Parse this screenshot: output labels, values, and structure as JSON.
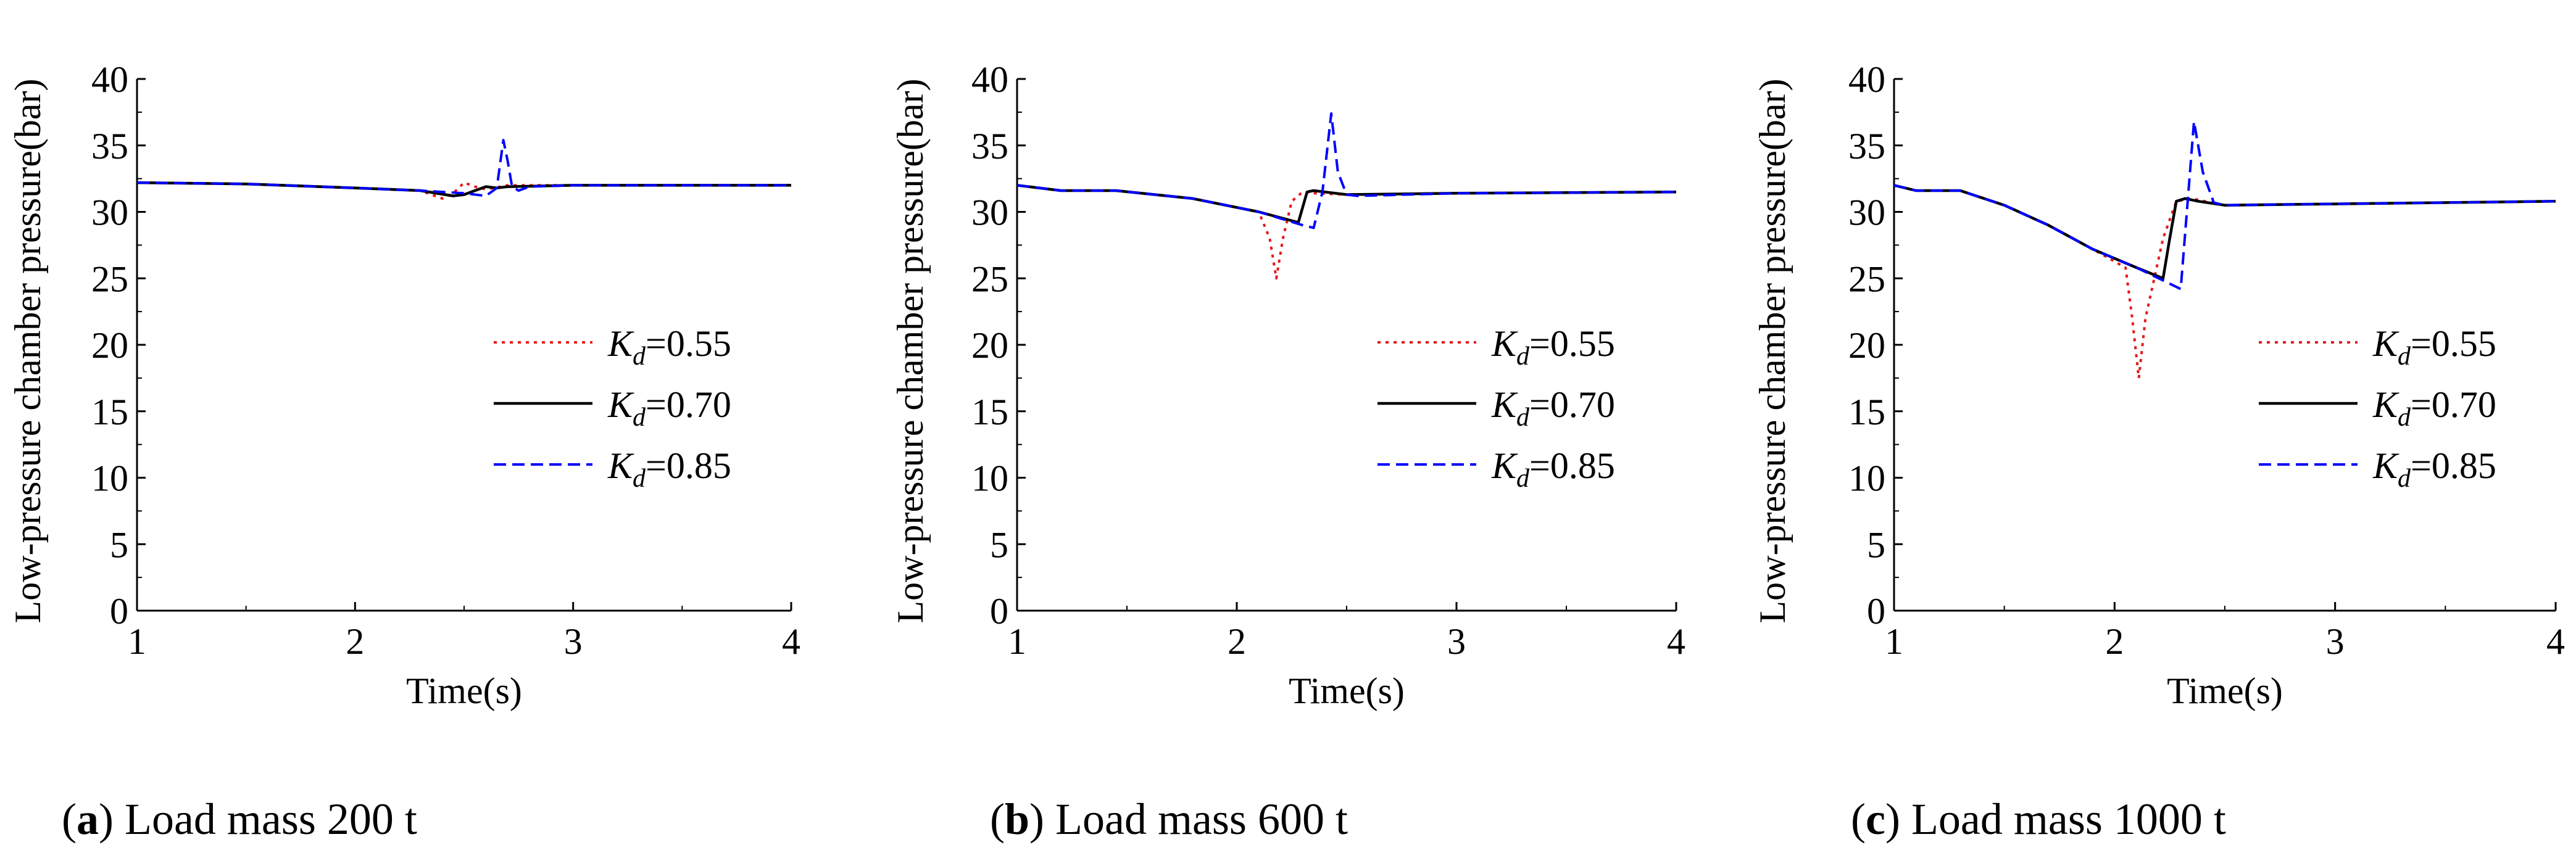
{
  "chart_data": [
    {
      "type": "line",
      "title": "",
      "xlabel": "Time(s)",
      "ylabel": "Low-pressure chamber pressure(bar)",
      "xlim": [
        1,
        4
      ],
      "ylim": [
        0,
        40
      ],
      "xticks": [
        1,
        2,
        3,
        4
      ],
      "yticks": [
        0,
        5,
        10,
        15,
        20,
        25,
        30,
        35,
        40
      ],
      "grid": false,
      "legend_position": "center-right",
      "caption": {
        "tag": "a",
        "text": " Load mass 200 t"
      },
      "series": [
        {
          "name": "Kd=0.55",
          "label_main": "K",
          "label_sub": "d",
          "label_value": "=0.55",
          "color": "#e41a1c",
          "style": "dotted",
          "x": [
            1.0,
            1.5,
            2.0,
            2.3,
            2.4,
            2.45,
            2.5,
            2.55,
            2.6,
            2.7,
            3.0,
            4.0
          ],
          "y": [
            32.2,
            32.1,
            31.8,
            31.6,
            31.0,
            31.4,
            32.2,
            31.9,
            31.7,
            32.0,
            32.0,
            32.0
          ]
        },
        {
          "name": "Kd=0.70",
          "label_main": "K",
          "label_sub": "d",
          "label_value": "=0.70",
          "color": "#000000",
          "style": "solid",
          "x": [
            1.0,
            1.5,
            2.0,
            2.3,
            2.45,
            2.5,
            2.55,
            2.6,
            2.65,
            2.7,
            3.0,
            4.0
          ],
          "y": [
            32.2,
            32.1,
            31.8,
            31.6,
            31.2,
            31.3,
            31.6,
            31.9,
            31.8,
            31.9,
            32.0,
            32.0
          ]
        },
        {
          "name": "Kd=0.85",
          "label_main": "K",
          "label_sub": "d",
          "label_value": "=0.85",
          "color": "#0000ff",
          "style": "dashed",
          "x": [
            1.0,
            1.5,
            2.0,
            2.3,
            2.5,
            2.6,
            2.65,
            2.68,
            2.7,
            2.72,
            2.75,
            2.8,
            3.0,
            4.0
          ],
          "y": [
            32.2,
            32.1,
            31.8,
            31.6,
            31.4,
            31.2,
            31.8,
            35.4,
            33.8,
            31.9,
            31.6,
            31.9,
            32.0,
            32.0
          ]
        }
      ]
    },
    {
      "type": "line",
      "title": "",
      "xlabel": "Time(s)",
      "ylabel": "Low-pressure chamber pressure(bar)",
      "xlim": [
        1,
        4
      ],
      "ylim": [
        0,
        40
      ],
      "xticks": [
        1,
        2,
        3,
        4
      ],
      "yticks": [
        0,
        5,
        10,
        15,
        20,
        25,
        30,
        35,
        40
      ],
      "grid": false,
      "legend_position": "center-right",
      "caption": {
        "tag": "b",
        "text": " Load mass 600 t"
      },
      "series": [
        {
          "name": "Kd=0.55",
          "label_main": "K",
          "label_sub": "d",
          "label_value": "=0.55",
          "color": "#e41a1c",
          "style": "dotted",
          "x": [
            1.0,
            1.2,
            1.45,
            1.8,
            2.1,
            2.15,
            2.18,
            2.21,
            2.25,
            2.3,
            2.35,
            2.5,
            3.0,
            4.0
          ],
          "y": [
            32.0,
            31.6,
            31.6,
            31.0,
            30.0,
            28.0,
            25.0,
            28.0,
            30.8,
            31.5,
            31.4,
            31.3,
            31.4,
            31.5
          ]
        },
        {
          "name": "Kd=0.70",
          "label_main": "K",
          "label_sub": "d",
          "label_value": "=0.70",
          "color": "#000000",
          "style": "solid",
          "x": [
            1.0,
            1.2,
            1.45,
            1.8,
            2.1,
            2.28,
            2.32,
            2.35,
            2.4,
            2.5,
            3.0,
            4.0
          ],
          "y": [
            32.0,
            31.6,
            31.6,
            31.0,
            30.0,
            29.2,
            31.5,
            31.6,
            31.5,
            31.3,
            31.4,
            31.5
          ]
        },
        {
          "name": "Kd=0.85",
          "label_main": "K",
          "label_sub": "d",
          "label_value": "=0.85",
          "color": "#0000ff",
          "style": "dashed",
          "x": [
            1.0,
            1.2,
            1.45,
            1.8,
            2.1,
            2.3,
            2.35,
            2.39,
            2.43,
            2.46,
            2.5,
            2.55,
            3.0,
            4.0
          ],
          "y": [
            32.0,
            31.6,
            31.6,
            31.0,
            30.0,
            29.0,
            28.8,
            31.5,
            37.4,
            33.0,
            31.3,
            31.2,
            31.4,
            31.5
          ]
        }
      ]
    },
    {
      "type": "line",
      "title": "",
      "xlabel": "Time(s)",
      "ylabel": "Low-pressure chamber pressure(bar)",
      "xlim": [
        1,
        4
      ],
      "ylim": [
        0,
        40
      ],
      "xticks": [
        1,
        2,
        3,
        4
      ],
      "yticks": [
        0,
        5,
        10,
        15,
        20,
        25,
        30,
        35,
        40
      ],
      "grid": false,
      "legend_position": "center-right",
      "caption": {
        "tag": "c",
        "text": " Load mass 1000 t"
      },
      "series": [
        {
          "name": "Kd=0.55",
          "label_main": "K",
          "label_sub": "d",
          "label_value": "=0.55",
          "color": "#e41a1c",
          "style": "dotted",
          "x": [
            1.0,
            1.1,
            1.3,
            1.5,
            1.7,
            1.9,
            2.05,
            2.08,
            2.11,
            2.14,
            2.18,
            2.22,
            2.28,
            2.35,
            2.5,
            3.0,
            4.0
          ],
          "y": [
            32.0,
            31.6,
            31.6,
            30.5,
            29.0,
            27.2,
            25.8,
            22.0,
            17.5,
            22.0,
            25.0,
            28.0,
            30.8,
            31.0,
            30.5,
            30.6,
            30.8
          ]
        },
        {
          "name": "Kd=0.70",
          "label_main": "K",
          "label_sub": "d",
          "label_value": "=0.70",
          "color": "#000000",
          "style": "solid",
          "x": [
            1.0,
            1.1,
            1.3,
            1.5,
            1.7,
            1.9,
            2.1,
            2.22,
            2.25,
            2.28,
            2.32,
            2.38,
            2.5,
            3.0,
            4.0
          ],
          "y": [
            32.0,
            31.6,
            31.6,
            30.5,
            29.0,
            27.2,
            25.8,
            25.0,
            28.0,
            30.8,
            31.0,
            30.8,
            30.5,
            30.6,
            30.8
          ]
        },
        {
          "name": "Kd=0.85",
          "label_main": "K",
          "label_sub": "d",
          "label_value": "=0.85",
          "color": "#0000ff",
          "style": "dashed",
          "x": [
            1.0,
            1.1,
            1.3,
            1.5,
            1.7,
            1.9,
            2.1,
            2.25,
            2.3,
            2.33,
            2.36,
            2.4,
            2.45,
            2.5,
            3.0,
            4.0
          ],
          "y": [
            32.0,
            31.6,
            31.6,
            30.5,
            29.0,
            27.2,
            25.8,
            24.6,
            24.2,
            30.5,
            36.8,
            33.0,
            30.7,
            30.5,
            30.6,
            30.8
          ]
        }
      ]
    }
  ]
}
